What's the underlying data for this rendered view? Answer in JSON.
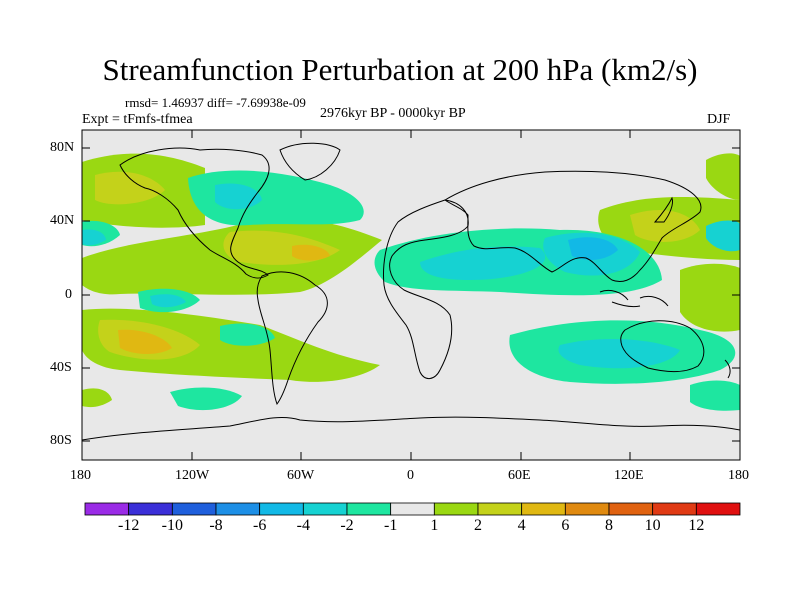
{
  "title": "Streamfunction Perturbation at 200 hPa (km2/s)",
  "stats": "rmsd= 1.46937 diff= -7.69938e-09",
  "expt": "Expt = tFmfs-tfmea",
  "period": "2976kyr BP - 0000kyr BP",
  "season": "DJF",
  "lat_ticks": [
    "80N",
    "40N",
    "0",
    "40S",
    "80S"
  ],
  "lon_ticks": [
    "180",
    "120W",
    "60W",
    "0",
    "60E",
    "120E",
    "180"
  ],
  "colorbar": {
    "colors": [
      "#9a2be6",
      "#3b2fd8",
      "#1f5fdc",
      "#1d8fe6",
      "#12b9e6",
      "#16d2d2",
      "#1ee6a0",
      "#e8e8e8",
      "#9ad812",
      "#c4d21a",
      "#e0b812",
      "#e08a10",
      "#e06210",
      "#e03a14",
      "#e01010"
    ],
    "labels": [
      "-12",
      "-10",
      "-8",
      "-6",
      "-4",
      "-2",
      "-1",
      "1",
      "2",
      "4",
      "6",
      "8",
      "10",
      "12"
    ]
  },
  "colors": {
    "land_outline": "#000000",
    "background": "#e8e8e8"
  }
}
